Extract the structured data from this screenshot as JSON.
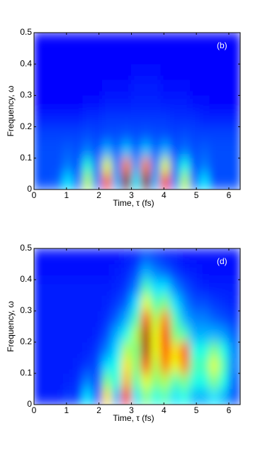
{
  "chart_data": [
    {
      "type": "heatmap",
      "colormap": "jet",
      "annotation": "(b)",
      "xlabel": "Time, τ (fs)",
      "ylabel": "Frequency, ω",
      "xlim": [
        0,
        6.35
      ],
      "ylim": [
        0,
        0.5
      ],
      "xticks": [
        0,
        1,
        2,
        3,
        4,
        5,
        6
      ],
      "yticks": [
        0,
        0.1,
        0.2,
        0.3,
        0.4,
        0.5
      ],
      "x": [
        0.15,
        0.45,
        0.75,
        1.05,
        1.35,
        1.65,
        1.95,
        2.25,
        2.55,
        2.85,
        3.15,
        3.45,
        3.75,
        4.05,
        4.35,
        4.65,
        4.95,
        5.25,
        5.55,
        5.85,
        6.15
      ],
      "y": [
        0.025,
        0.075,
        0.125,
        0.175,
        0.225,
        0.275,
        0.325,
        0.375,
        0.425,
        0.475
      ],
      "z": [
        [
          0.2,
          0.2,
          0.22,
          0.35,
          0.22,
          0.55,
          0.25,
          0.8,
          0.3,
          1.0,
          0.35,
          1.0,
          0.3,
          0.85,
          0.25,
          0.55,
          0.22,
          0.35,
          0.2,
          0.2,
          0.2
        ],
        [
          0.2,
          0.2,
          0.2,
          0.25,
          0.2,
          0.42,
          0.22,
          0.6,
          0.25,
          0.75,
          0.28,
          0.75,
          0.25,
          0.6,
          0.22,
          0.4,
          0.2,
          0.25,
          0.2,
          0.2,
          0.2
        ],
        [
          0.2,
          0.2,
          0.2,
          0.22,
          0.2,
          0.25,
          0.2,
          0.3,
          0.22,
          0.32,
          0.22,
          0.32,
          0.22,
          0.3,
          0.2,
          0.24,
          0.2,
          0.22,
          0.2,
          0.2,
          0.2
        ],
        [
          0.19,
          0.19,
          0.19,
          0.19,
          0.19,
          0.2,
          0.19,
          0.2,
          0.2,
          0.21,
          0.2,
          0.21,
          0.2,
          0.2,
          0.19,
          0.2,
          0.19,
          0.19,
          0.19,
          0.19,
          0.19
        ],
        [
          0.16,
          0.16,
          0.16,
          0.16,
          0.16,
          0.17,
          0.17,
          0.18,
          0.18,
          0.18,
          0.18,
          0.18,
          0.18,
          0.18,
          0.17,
          0.17,
          0.17,
          0.16,
          0.16,
          0.16,
          0.16
        ],
        [
          0.13,
          0.13,
          0.13,
          0.13,
          0.13,
          0.14,
          0.14,
          0.15,
          0.15,
          0.15,
          0.16,
          0.16,
          0.16,
          0.15,
          0.15,
          0.15,
          0.14,
          0.14,
          0.13,
          0.13,
          0.13
        ],
        [
          0.13,
          0.13,
          0.13,
          0.13,
          0.13,
          0.13,
          0.13,
          0.14,
          0.14,
          0.14,
          0.15,
          0.15,
          0.15,
          0.14,
          0.14,
          0.14,
          0.13,
          0.13,
          0.13,
          0.13,
          0.13
        ],
        [
          0.13,
          0.13,
          0.13,
          0.13,
          0.13,
          0.13,
          0.13,
          0.13,
          0.13,
          0.13,
          0.14,
          0.14,
          0.14,
          0.13,
          0.13,
          0.13,
          0.13,
          0.13,
          0.13,
          0.13,
          0.13
        ],
        [
          0.13,
          0.13,
          0.13,
          0.13,
          0.13,
          0.13,
          0.13,
          0.13,
          0.13,
          0.13,
          0.13,
          0.13,
          0.13,
          0.13,
          0.13,
          0.13,
          0.13,
          0.13,
          0.13,
          0.13,
          0.13
        ],
        [
          0.13,
          0.13,
          0.13,
          0.13,
          0.13,
          0.13,
          0.13,
          0.13,
          0.13,
          0.13,
          0.13,
          0.13,
          0.13,
          0.13,
          0.13,
          0.13,
          0.13,
          0.13,
          0.13,
          0.13,
          0.13
        ]
      ]
    },
    {
      "type": "heatmap",
      "colormap": "jet",
      "annotation": "(d)",
      "xlabel": "Time, τ (fs)",
      "ylabel": "Frequency, ω",
      "xlim": [
        0,
        6.35
      ],
      "ylim": [
        0,
        0.5
      ],
      "xticks": [
        0,
        1,
        2,
        3,
        4,
        5,
        6
      ],
      "yticks": [
        0,
        0.1,
        0.2,
        0.3,
        0.4,
        0.5
      ],
      "x": [
        0.15,
        0.45,
        0.75,
        1.05,
        1.35,
        1.65,
        1.95,
        2.25,
        2.55,
        2.85,
        3.15,
        3.45,
        3.75,
        4.05,
        4.35,
        4.65,
        4.95,
        5.25,
        5.55,
        5.85,
        6.15
      ],
      "y": [
        0.025,
        0.075,
        0.125,
        0.175,
        0.225,
        0.275,
        0.325,
        0.375,
        0.425,
        0.475
      ],
      "z": [
        [
          0.15,
          0.15,
          0.15,
          0.18,
          0.18,
          0.35,
          0.2,
          0.65,
          0.3,
          0.85,
          0.35,
          0.5,
          0.4,
          0.45,
          0.35,
          0.4,
          0.3,
          0.3,
          0.35,
          0.3,
          0.2
        ],
        [
          0.15,
          0.15,
          0.15,
          0.16,
          0.17,
          0.25,
          0.2,
          0.5,
          0.4,
          0.7,
          0.45,
          0.6,
          0.5,
          0.55,
          0.45,
          0.5,
          0.4,
          0.4,
          0.5,
          0.4,
          0.22
        ],
        [
          0.15,
          0.15,
          0.15,
          0.15,
          0.16,
          0.18,
          0.2,
          0.35,
          0.4,
          0.65,
          0.5,
          0.8,
          0.55,
          0.75,
          0.6,
          0.75,
          0.45,
          0.45,
          0.6,
          0.45,
          0.25
        ],
        [
          0.15,
          0.15,
          0.15,
          0.15,
          0.15,
          0.16,
          0.18,
          0.25,
          0.35,
          0.55,
          0.5,
          0.95,
          0.6,
          0.8,
          0.65,
          0.8,
          0.4,
          0.4,
          0.5,
          0.4,
          0.25
        ],
        [
          0.15,
          0.15,
          0.15,
          0.15,
          0.15,
          0.15,
          0.16,
          0.2,
          0.3,
          0.4,
          0.55,
          0.95,
          0.6,
          0.85,
          0.5,
          0.45,
          0.3,
          0.3,
          0.3,
          0.28,
          0.22
        ],
        [
          0.15,
          0.15,
          0.15,
          0.15,
          0.15,
          0.15,
          0.15,
          0.17,
          0.22,
          0.3,
          0.45,
          0.8,
          0.55,
          0.75,
          0.45,
          0.3,
          0.25,
          0.25,
          0.22,
          0.2,
          0.18
        ],
        [
          0.15,
          0.15,
          0.15,
          0.15,
          0.15,
          0.15,
          0.15,
          0.16,
          0.18,
          0.22,
          0.35,
          0.6,
          0.45,
          0.5,
          0.35,
          0.25,
          0.2,
          0.2,
          0.18,
          0.17,
          0.16
        ],
        [
          0.15,
          0.15,
          0.15,
          0.15,
          0.15,
          0.15,
          0.15,
          0.15,
          0.16,
          0.18,
          0.25,
          0.45,
          0.35,
          0.35,
          0.25,
          0.2,
          0.17,
          0.16,
          0.15,
          0.15,
          0.15
        ],
        [
          0.14,
          0.14,
          0.14,
          0.14,
          0.14,
          0.14,
          0.14,
          0.14,
          0.15,
          0.16,
          0.2,
          0.3,
          0.25,
          0.22,
          0.18,
          0.16,
          0.15,
          0.14,
          0.14,
          0.14,
          0.14
        ],
        [
          0.14,
          0.14,
          0.14,
          0.14,
          0.14,
          0.14,
          0.14,
          0.14,
          0.14,
          0.15,
          0.16,
          0.2,
          0.18,
          0.16,
          0.15,
          0.14,
          0.14,
          0.14,
          0.14,
          0.14,
          0.14
        ]
      ]
    }
  ]
}
